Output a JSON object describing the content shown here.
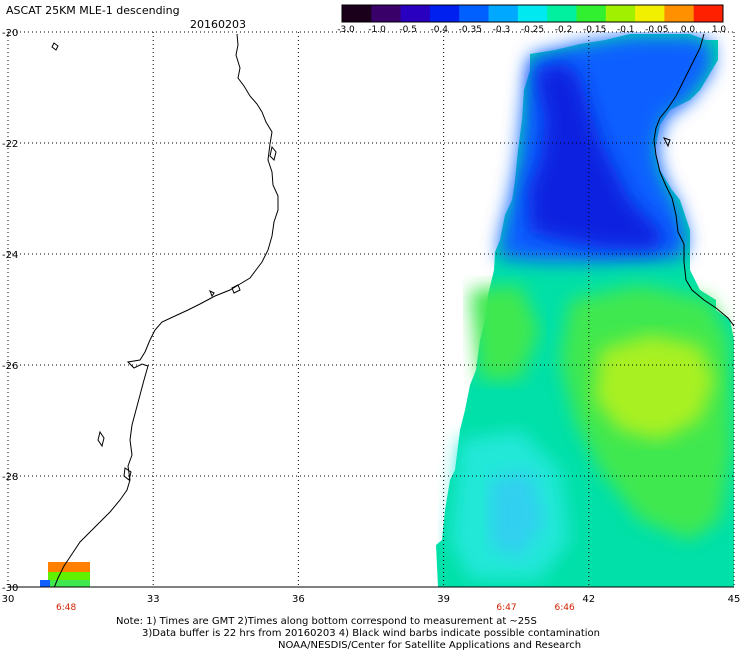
{
  "header": {
    "title": "ASCAT 25KM MLE-1 descending",
    "date": "20160203"
  },
  "colorbar": {
    "labels": [
      "-3.0",
      "-1.0",
      "-0.5",
      "-0.4",
      "-0.35",
      "-0.3",
      "-0.25",
      "-0.2",
      "-0.15",
      "-0.1",
      "-0.05",
      "0.0",
      "1.0"
    ],
    "colors": [
      "#1a001a",
      "#3a006a",
      "#2a00c0",
      "#0020f0",
      "#0060ff",
      "#00a8ff",
      "#00e8f0",
      "#00f0a0",
      "#30f030",
      "#a0f000",
      "#f0f000",
      "#ff9000",
      "#ff2000"
    ]
  },
  "axes": {
    "lon_ticks": [
      "30",
      "33",
      "36",
      "39",
      "42",
      "45"
    ],
    "lat_ticks": [
      "-20",
      "-22",
      "-24",
      "-26",
      "-28",
      "-30"
    ],
    "lon_range": [
      30,
      45
    ],
    "lat_range": [
      -30,
      -20
    ]
  },
  "times": [
    {
      "lon": 31.2,
      "label": "6:48"
    },
    {
      "lon": 40.3,
      "label": "6:47"
    },
    {
      "lon": 41.5,
      "label": "6:46"
    }
  ],
  "notes": {
    "line1": "Note: 1) Times are GMT 2)Times along bottom correspond to measurement at ~25S",
    "line2": "3)Data buffer is 22 hrs from 20160203 4) Black wind barbs indicate possible contamination",
    "line3": "NOAA/NESDIS/Center for Satellite Applications and Research"
  }
}
